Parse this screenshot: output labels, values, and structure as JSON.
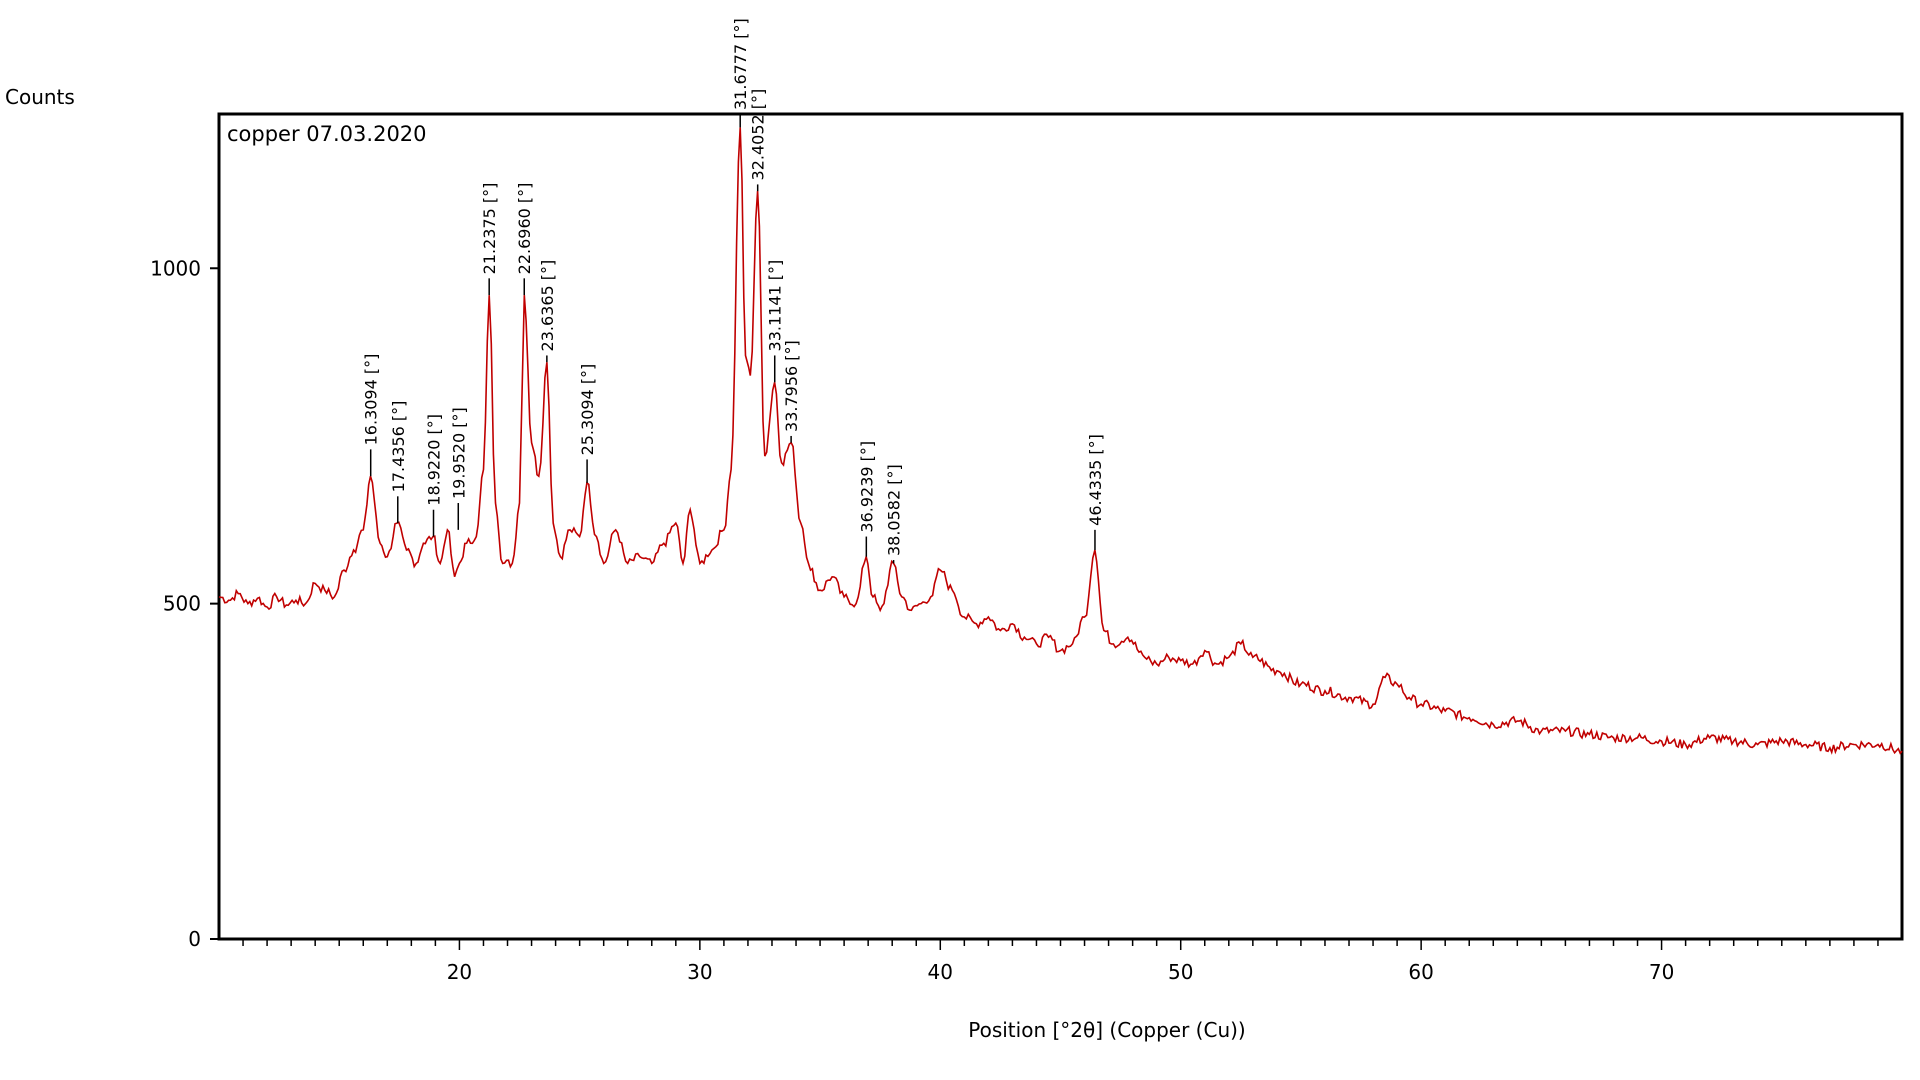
{
  "chart_data": {
    "type": "line",
    "sample_label": "copper 07.03.2020",
    "ylabel": "Counts",
    "xlabel": "Position [°2θ] (Copper (Cu))",
    "xlim": [
      10,
      80
    ],
    "ylim": [
      0,
      1230
    ],
    "x_major_ticks": [
      20,
      30,
      40,
      50,
      60,
      70
    ],
    "x_minor_step": 1,
    "y_ticks": [
      0,
      500,
      1000
    ],
    "series": [
      {
        "color": "#c00000",
        "x": [
          10,
          10.4,
          10.8,
          11.2,
          11.6,
          12,
          12.4,
          12.8,
          13.2,
          13.6,
          14,
          14.4,
          14.8,
          15.2,
          15.6,
          16,
          16.3,
          16.7,
          17,
          17.4,
          17.8,
          18.2,
          18.5,
          18.9,
          19.2,
          19.5,
          19.8,
          20.0,
          20.3,
          20.7,
          21.0,
          21.24,
          21.5,
          21.8,
          22.2,
          22.5,
          22.7,
          23.0,
          23.3,
          23.64,
          23.9,
          24.2,
          24.6,
          25.0,
          25.3,
          25.7,
          26.0,
          26.5,
          27.0,
          27.5,
          28.0,
          28.5,
          29.0,
          29.3,
          29.6,
          30.0,
          30.5,
          31.0,
          31.3,
          31.68,
          31.9,
          32.1,
          32.4,
          32.7,
          33.11,
          33.4,
          33.8,
          34.2,
          34.6,
          35.0,
          35.5,
          36.0,
          36.5,
          36.92,
          37.2,
          37.5,
          38.06,
          38.4,
          38.8,
          39.2,
          39.6,
          40.0,
          40.5,
          41.0,
          41.5,
          42.0,
          42.5,
          43.0,
          43.5,
          44.0,
          44.5,
          45.0,
          45.5,
          46.0,
          46.43,
          46.8,
          47.2,
          47.8,
          48.5,
          49.0,
          49.5,
          50.0,
          50.5,
          51.0,
          51.5,
          52.0,
          52.5,
          53.0,
          54.0,
          55.0,
          56.0,
          57.0,
          58.0,
          58.5,
          59.0,
          59.5,
          60.0,
          61.0,
          62.0,
          63.0,
          64.0,
          65.0,
          66.0,
          67.0,
          68.0,
          69.0,
          70.0,
          71.0,
          72.0,
          73.0,
          74.0,
          75.0,
          76.0,
          77.0,
          78.0,
          79.0,
          80.0
        ],
        "y": [
          510,
          505,
          515,
          500,
          508,
          495,
          510,
          498,
          505,
          500,
          530,
          520,
          510,
          550,
          580,
          610,
          690,
          590,
          570,
          620,
          580,
          560,
          590,
          600,
          560,
          610,
          540,
          560,
          590,
          600,
          700,
          960,
          650,
          560,
          560,
          650,
          960,
          740,
          690,
          860,
          620,
          570,
          610,
          600,
          680,
          600,
          560,
          610,
          560,
          570,
          560,
          590,
          620,
          560,
          640,
          560,
          580,
          610,
          700,
          1210,
          870,
          840,
          1115,
          720,
          830,
          710,
          740,
          620,
          550,
          520,
          540,
          510,
          500,
          570,
          510,
          490,
          560,
          510,
          490,
          500,
          510,
          550,
          520,
          480,
          470,
          480,
          460,
          470,
          450,
          440,
          450,
          430,
          440,
          480,
          580,
          460,
          440,
          450,
          420,
          410,
          420,
          415,
          410,
          430,
          410,
          420,
          440,
          420,
          400,
          380,
          370,
          360,
          350,
          390,
          380,
          360,
          350,
          340,
          330,
          320,
          325,
          310,
          310,
          305,
          300,
          300,
          295,
          290,
          300,
          295,
          290,
          295,
          290,
          285,
          290,
          290,
          280
        ]
      }
    ],
    "peaks": [
      {
        "x": 16.3094,
        "y": 690,
        "tip": 730,
        "label": "16.3094 [°]"
      },
      {
        "x": 17.4356,
        "y": 620,
        "tip": 660,
        "label": "17.4356 [°]"
      },
      {
        "x": 18.922,
        "y": 600,
        "tip": 640,
        "label": "18.9220 [°]"
      },
      {
        "x": 19.952,
        "y": 610,
        "tip": 650,
        "label": "19.9520 [°]"
      },
      {
        "x": 21.2375,
        "y": 960,
        "tip": 985,
        "label": "21.2375 [°]"
      },
      {
        "x": 22.696,
        "y": 960,
        "tip": 985,
        "label": "22.6960 [°]"
      },
      {
        "x": 23.6365,
        "y": 860,
        "tip": 870,
        "label": "23.6365 [°]"
      },
      {
        "x": 25.3094,
        "y": 680,
        "tip": 715,
        "label": "25.3094 [°]"
      },
      {
        "x": 31.6777,
        "y": 1210,
        "tip": 1230,
        "label": "31.6777 [°]"
      },
      {
        "x": 32.4052,
        "y": 1115,
        "tip": 1125,
        "label": "32.4052 [°]"
      },
      {
        "x": 33.1141,
        "y": 830,
        "tip": 870,
        "label": "33.1141 [°]"
      },
      {
        "x": 33.7956,
        "y": 740,
        "tip": 750,
        "label": "33.7956 [°]"
      },
      {
        "x": 36.9239,
        "y": 570,
        "tip": 600,
        "label": "36.9239 [°]"
      },
      {
        "x": 38.0582,
        "y": 560,
        "tip": 565,
        "label": "38.0582 [°]"
      },
      {
        "x": 46.4335,
        "y": 580,
        "tip": 610,
        "label": "46.4335 [°]"
      }
    ]
  }
}
